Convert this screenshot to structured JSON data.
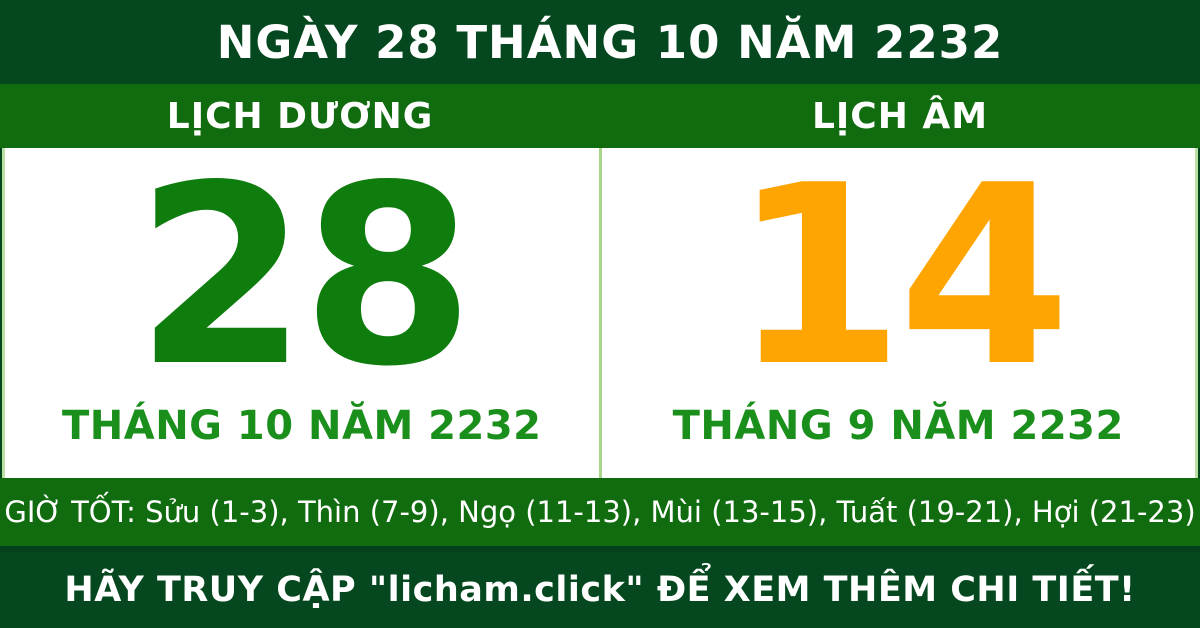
{
  "header": {
    "title": "NGÀY 28 THÁNG 10 NĂM 2232"
  },
  "columns": {
    "solar_label": "LỊCH DƯƠNG",
    "lunar_label": "LỊCH ÂM"
  },
  "solar": {
    "day": "28",
    "month_year": "THÁNG 10 NĂM 2232"
  },
  "lunar": {
    "day": "14",
    "month_year": "THÁNG 9 NĂM 2232"
  },
  "good_hours": {
    "text": "GIỜ TỐT: Sửu (1-3), Thìn (7-9), Ngọ (11-13), Mùi (13-15), Tuất (19-21), Hợi (21-23)"
  },
  "footer": {
    "cta": "HÃY TRUY CẬP \"licham.click\" ĐỂ XEM THÊM CHI TIẾT!"
  },
  "colors": {
    "dark_green": "#05481f",
    "bar_green": "#106c0e",
    "solar_day_green": "#0e7d0e",
    "month_green": "#1b8f1b",
    "lunar_day_orange": "#ffa502",
    "divider_light_green": "#a9d68b",
    "panel_border_light_green": "#bcdfa6",
    "text_white": "#ffffff"
  }
}
